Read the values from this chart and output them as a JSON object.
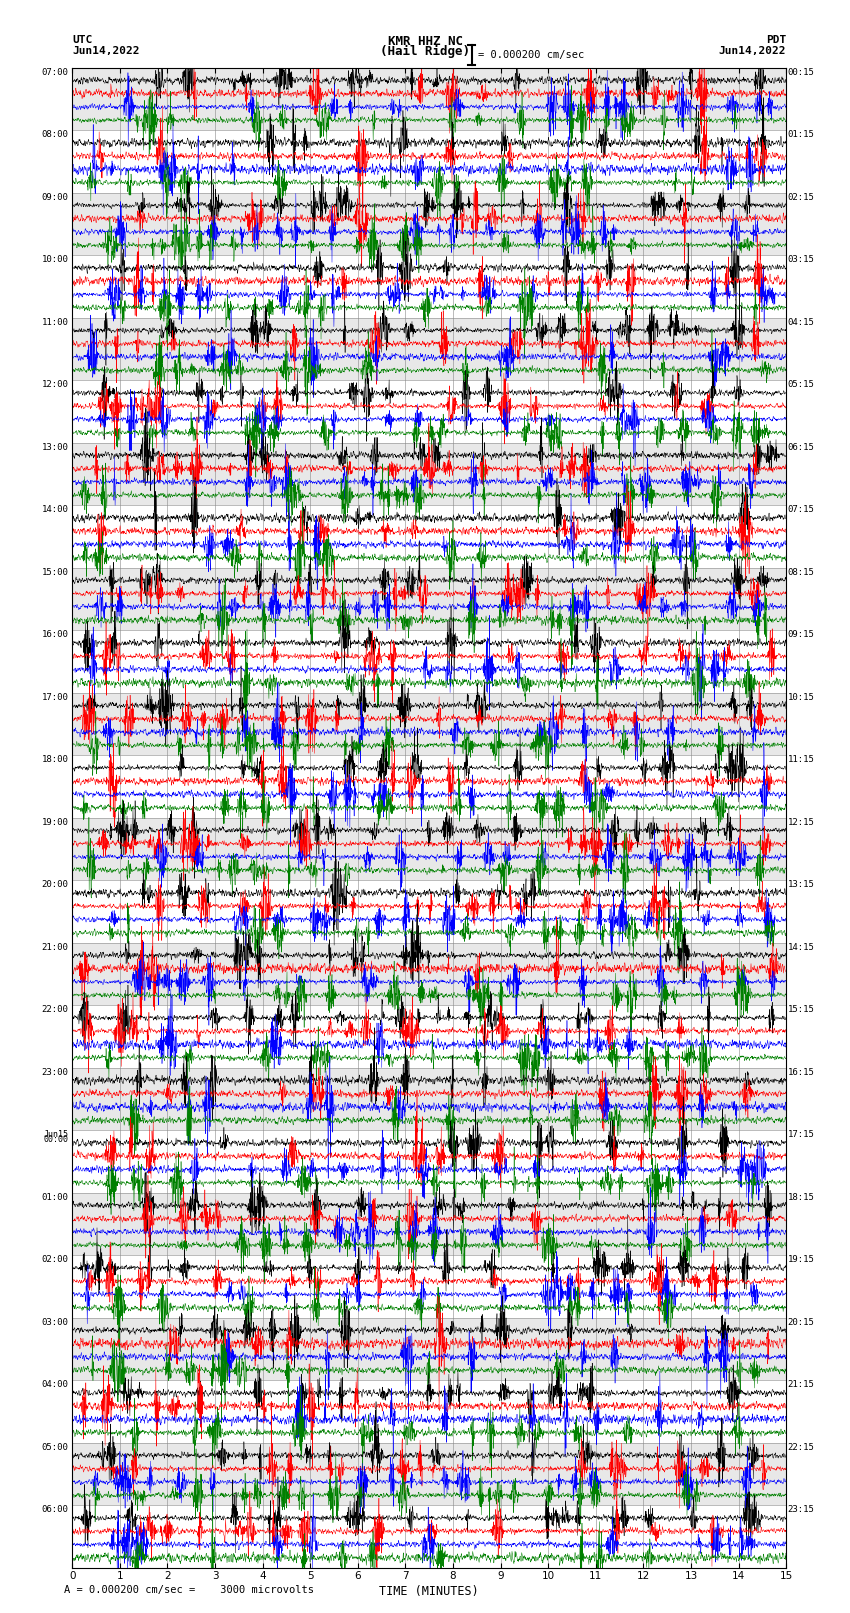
{
  "title_center": "KMR HHZ NC\n(Hail Ridge)",
  "title_left_top": "UTC",
  "title_left_bottom": "Jun14,2022",
  "title_right_top": "PDT",
  "title_right_bottom": "Jun14,2022",
  "scale_text": "= 0.000200 cm/sec",
  "bottom_text": "A = 0.000200 cm/sec =    3000 microvolts",
  "xlabel": "TIME (MINUTES)",
  "xticks": [
    0,
    1,
    2,
    3,
    4,
    5,
    6,
    7,
    8,
    9,
    10,
    11,
    12,
    13,
    14,
    15
  ],
  "left_times": [
    "07:00",
    "08:00",
    "09:00",
    "10:00",
    "11:00",
    "12:00",
    "13:00",
    "14:00",
    "15:00",
    "16:00",
    "17:00",
    "18:00",
    "19:00",
    "20:00",
    "21:00",
    "22:00",
    "23:00",
    "Jun15\n00:00",
    "01:00",
    "02:00",
    "03:00",
    "04:00",
    "05:00",
    "06:00"
  ],
  "right_times": [
    "00:15",
    "01:15",
    "02:15",
    "03:15",
    "04:15",
    "05:15",
    "06:15",
    "07:15",
    "08:15",
    "09:15",
    "10:15",
    "11:15",
    "12:15",
    "13:15",
    "14:15",
    "15:15",
    "16:15",
    "17:15",
    "18:15",
    "19:15",
    "20:15",
    "21:15",
    "22:15",
    "23:15"
  ],
  "n_rows": 24,
  "traces_per_row": 4,
  "colors": [
    "black",
    "red",
    "blue",
    "green"
  ],
  "bg_color": "white",
  "row_bg_colors": [
    "#e8e8e8",
    "white"
  ],
  "figsize": [
    8.5,
    16.13
  ],
  "dpi": 100,
  "amp_scale": 0.28,
  "trace_sep": 0.85,
  "lw": 0.35
}
